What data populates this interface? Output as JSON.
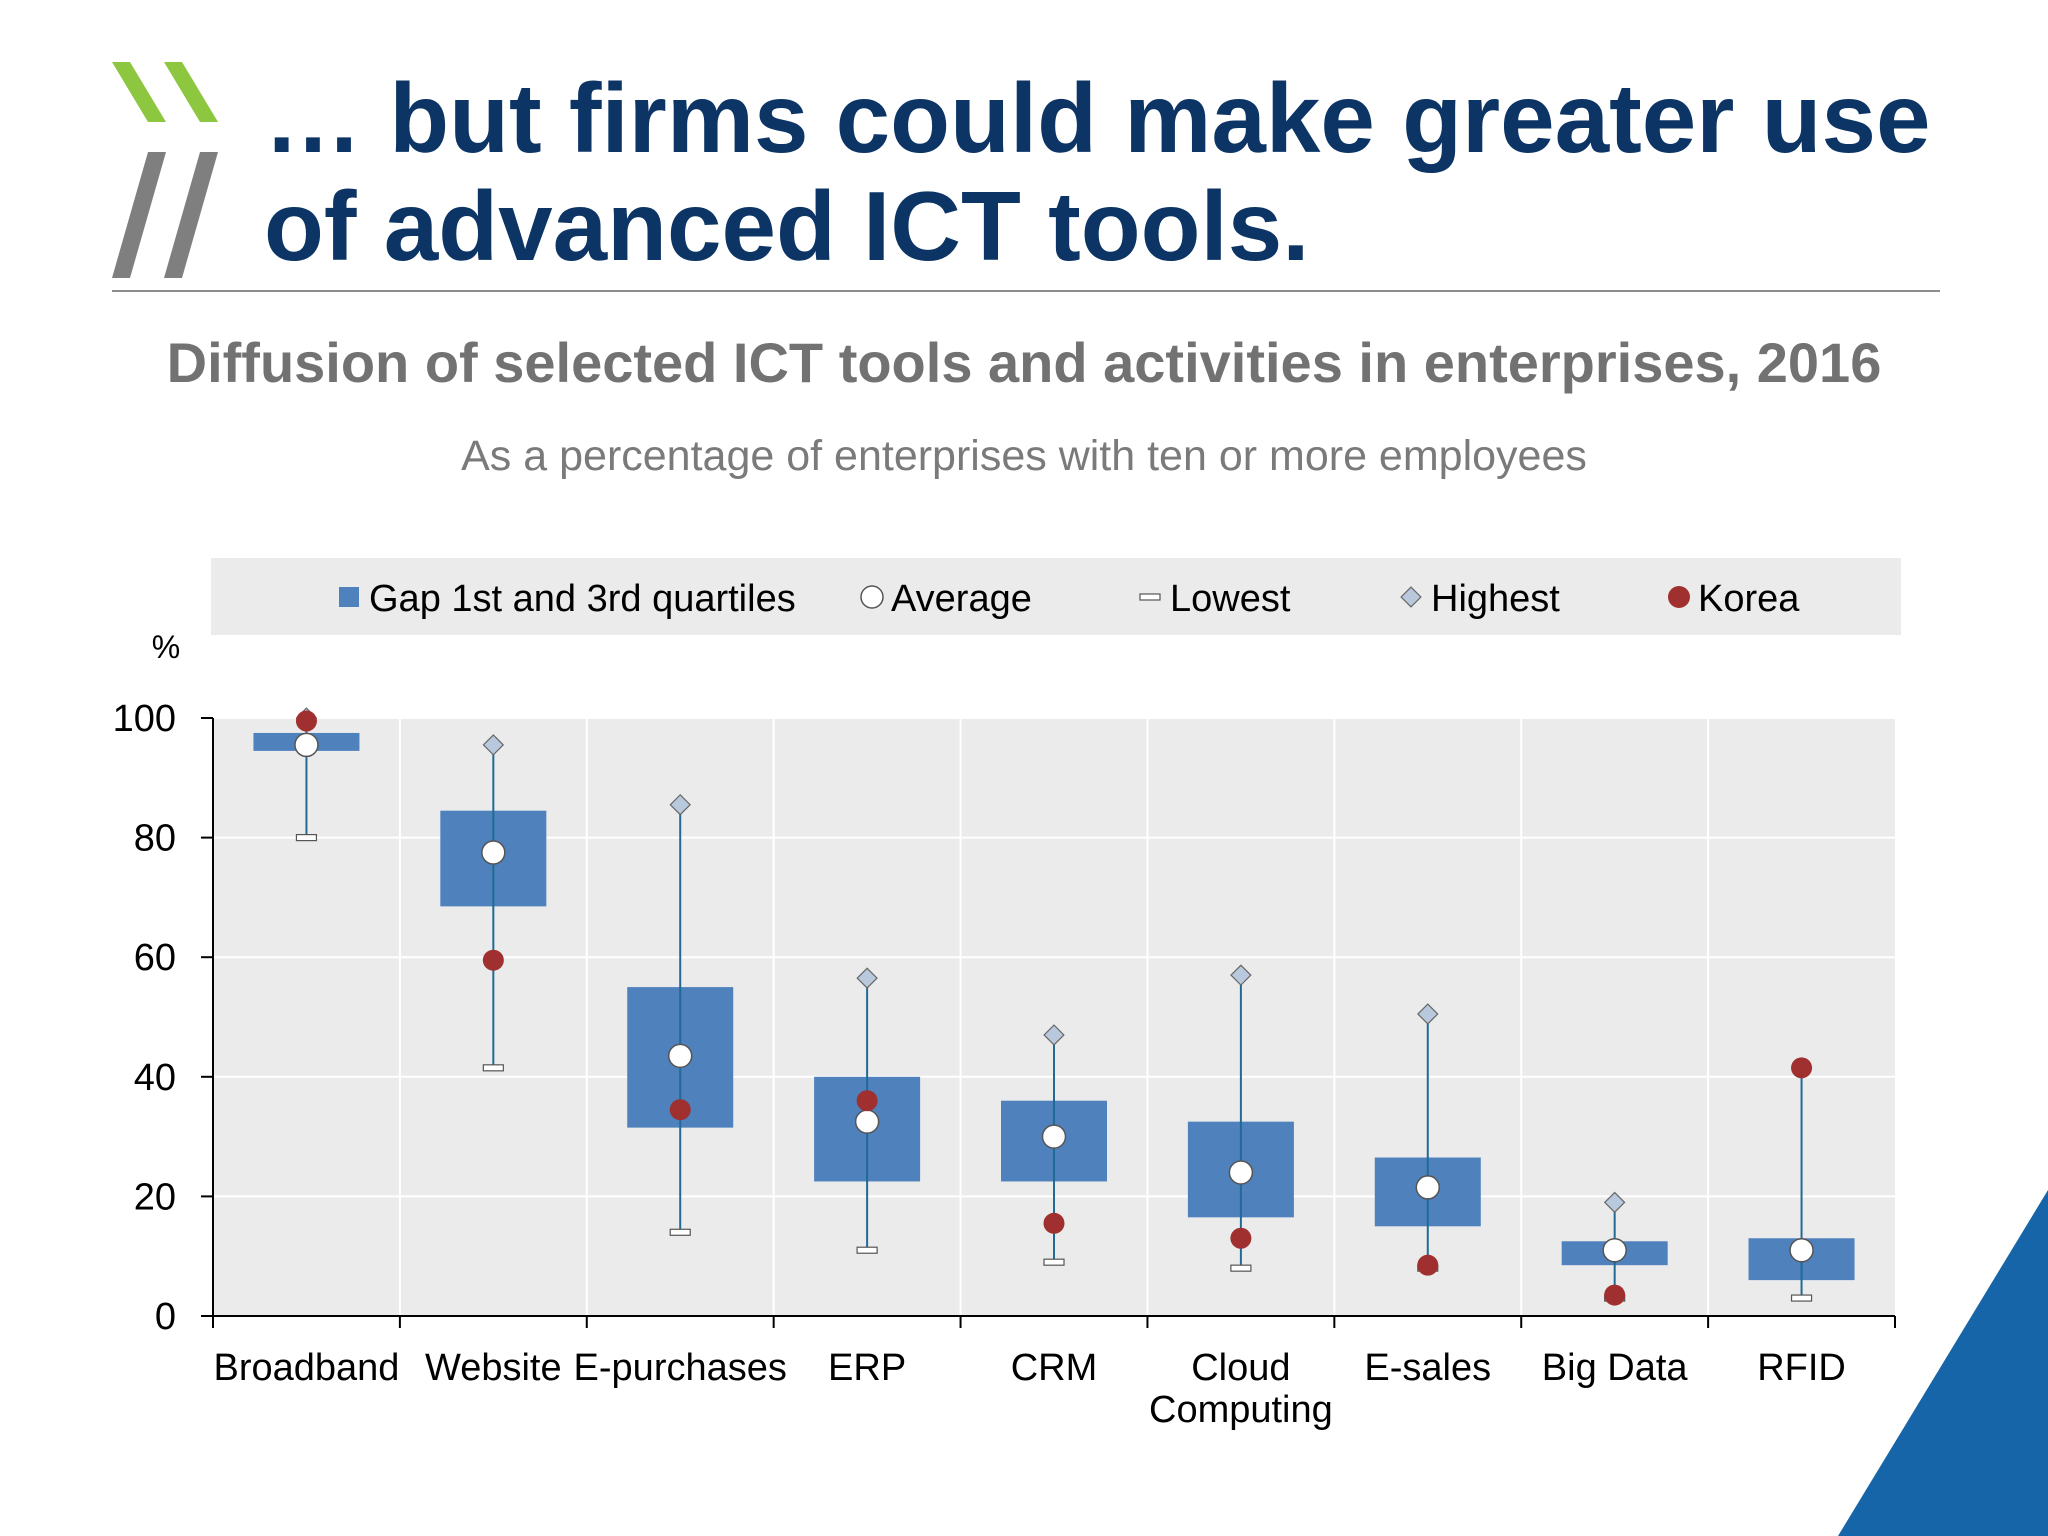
{
  "slide": {
    "title": "… but firms could make greater use of advanced ICT tools.",
    "colors": {
      "title": "#0c3566",
      "logo_green": "#8dc63f",
      "logo_grey": "#7f7f7f",
      "corner_blue": "#1565a8"
    }
  },
  "chart_data": {
    "type": "boxplot",
    "title": "Diffusion of selected ICT tools and activities in enterprises, 2016",
    "subtitle": "As a percentage of enterprises with ten or more employees",
    "ylabel": "%",
    "ylim": [
      0,
      100
    ],
    "yticks": [
      0,
      20,
      40,
      60,
      80,
      100
    ],
    "grid": true,
    "legend_position": "top",
    "legend": [
      {
        "key": "box",
        "label": "Gap 1st and 3rd quartiles"
      },
      {
        "key": "average",
        "label": "Average"
      },
      {
        "key": "lowest",
        "label": "Lowest"
      },
      {
        "key": "highest",
        "label": "Highest"
      },
      {
        "key": "korea",
        "label": "Korea"
      }
    ],
    "categories": [
      [
        "Broadband"
      ],
      [
        "Website"
      ],
      [
        "E-purchases"
      ],
      [
        "ERP"
      ],
      [
        "CRM"
      ],
      [
        "Cloud",
        "Computing"
      ],
      [
        "E-sales"
      ],
      [
        "Big Data"
      ],
      [
        "RFID"
      ]
    ],
    "series": [
      {
        "key": "q1",
        "values": [
          94.5,
          68.5,
          31.5,
          22.5,
          22.5,
          16.5,
          15.0,
          8.5,
          6.0
        ]
      },
      {
        "key": "q3",
        "values": [
          97.5,
          84.5,
          55.0,
          40.0,
          36.0,
          32.5,
          26.5,
          12.5,
          13.0
        ]
      },
      {
        "key": "average",
        "values": [
          95.5,
          77.5,
          43.5,
          32.5,
          30.0,
          24.0,
          21.5,
          11.0,
          11.0
        ]
      },
      {
        "key": "lowest",
        "values": [
          80.0,
          41.5,
          14.0,
          11.0,
          9.0,
          8.0,
          8.0,
          3.0,
          3.0
        ]
      },
      {
        "key": "highest",
        "values": [
          100.0,
          95.5,
          85.5,
          56.5,
          47.0,
          57.0,
          50.5,
          19.0,
          41.5
        ]
      },
      {
        "key": "korea",
        "values": [
          99.5,
          59.5,
          34.5,
          36.0,
          15.5,
          13.0,
          8.5,
          3.5,
          41.5
        ]
      }
    ],
    "colors": {
      "box": "#4f81bd",
      "whisker": "#1f6b95",
      "average": "#ffffff",
      "korea": "#a0302f",
      "highest": "#b8c9de",
      "plot_bg": "#ebebeb",
      "legend_bg": "#ebebeb",
      "axis": "#000000"
    }
  }
}
